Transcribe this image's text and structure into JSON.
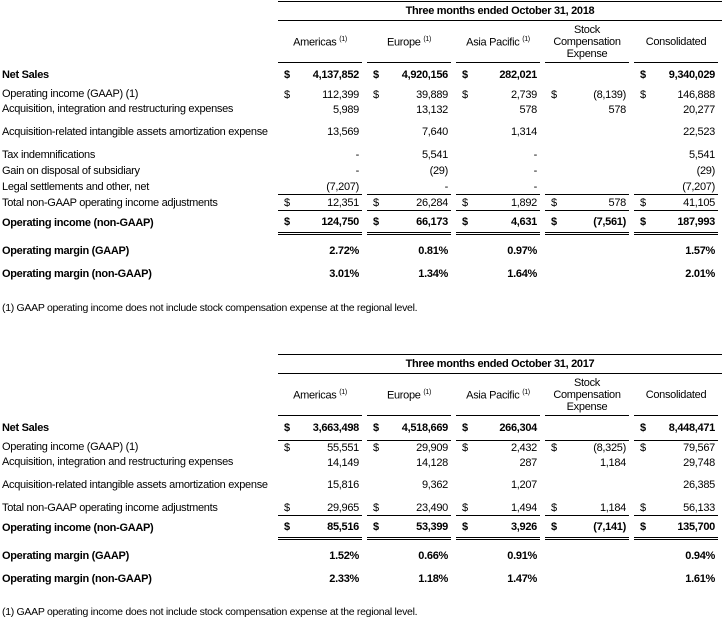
{
  "tables": [
    {
      "title": "Three months ended October 31, 2018",
      "columns": [
        "Americas",
        "Europe",
        "Asia Pacific",
        "Stock Compensation Expense",
        "Consolidated"
      ],
      "footnote_marker": "(1)",
      "rows": [
        {
          "key": "net_sales",
          "label": "Net Sales",
          "values": [
            "4,137,852",
            "4,920,156",
            "282,021",
            "",
            "9,340,029"
          ],
          "dollar": [
            true,
            true,
            true,
            false,
            true
          ]
        },
        {
          "key": "op_gaap",
          "label": "Operating income (GAAP) (1)",
          "values": [
            "112,399",
            "39,889",
            "2,739",
            "(8,139)",
            "146,888"
          ],
          "dollar": [
            true,
            true,
            true,
            true,
            true
          ]
        },
        {
          "key": "acq",
          "label": "Acquisition, integration and restructuring expenses",
          "values": [
            "5,989",
            "13,132",
            "578",
            "578",
            "20,277"
          ]
        },
        {
          "key": "amort",
          "label": "Acquisition-related intangible assets amortization expense",
          "values": [
            "13,569",
            "7,640",
            "1,314",
            "",
            "22,523"
          ]
        },
        {
          "key": "tax",
          "label": "Tax indemnifications",
          "values": [
            "-",
            "5,541",
            "-",
            "",
            "5,541"
          ]
        },
        {
          "key": "gain",
          "label": "Gain on disposal of subsidiary",
          "values": [
            "-",
            "(29)",
            "-",
            "",
            "(29)"
          ]
        },
        {
          "key": "legal",
          "label": "Legal settlements and other, net",
          "values": [
            "(7,207)",
            "-",
            "-",
            "",
            "(7,207)"
          ]
        },
        {
          "key": "total_adj",
          "label": "Total non-GAAP operating income adjustments",
          "values": [
            "12,351",
            "26,284",
            "1,892",
            "578",
            "41,105"
          ],
          "dollar": [
            true,
            true,
            true,
            true,
            true
          ]
        },
        {
          "key": "op_nongaap",
          "label": "Operating income (non-GAAP)",
          "values": [
            "124,750",
            "66,173",
            "4,631",
            "(7,561)",
            "187,993"
          ],
          "dollar": [
            true,
            true,
            true,
            true,
            true
          ]
        },
        {
          "key": "margin_gaap",
          "label": "Operating margin (GAAP)",
          "values": [
            "2.72%",
            "0.81%",
            "0.97%",
            "",
            "1.57%"
          ]
        },
        {
          "key": "margin_nongaap",
          "label": "Operating margin (non-GAAP)",
          "values": [
            "3.01%",
            "1.34%",
            "1.64%",
            "",
            "2.01%"
          ]
        }
      ],
      "footnote": "(1) GAAP operating income does not include stock compensation expense at the regional level."
    },
    {
      "title": "Three months ended October 31, 2017",
      "columns": [
        "Americas",
        "Europe",
        "Asia Pacific",
        "Stock Compensation Expense",
        "Consolidated"
      ],
      "footnote_marker": "(1)",
      "rows": [
        {
          "key": "net_sales",
          "label": "Net Sales",
          "values": [
            "3,663,498",
            "4,518,669",
            "266,304",
            "",
            "8,448,471"
          ],
          "dollar": [
            true,
            true,
            true,
            false,
            true
          ]
        },
        {
          "key": "op_gaap",
          "label": "Operating income (GAAP) (1)",
          "values": [
            "55,551",
            "29,909",
            "2,432",
            "(8,325)",
            "79,567"
          ],
          "dollar": [
            true,
            true,
            true,
            true,
            true
          ]
        },
        {
          "key": "acq",
          "label": "Acquisition, integration and restructuring expenses",
          "values": [
            "14,149",
            "14,128",
            "287",
            "1,184",
            "29,748"
          ]
        },
        {
          "key": "amort",
          "label": "Acquisition-related intangible assets amortization expense",
          "values": [
            "15,816",
            "9,362",
            "1,207",
            "",
            "26,385"
          ]
        },
        {
          "key": "total_adj",
          "label": "Total non-GAAP operating income adjustments",
          "values": [
            "29,965",
            "23,490",
            "1,494",
            "1,184",
            "56,133"
          ],
          "dollar": [
            true,
            true,
            true,
            true,
            true
          ]
        },
        {
          "key": "op_nongaap",
          "label": "Operating income (non-GAAP)",
          "values": [
            "85,516",
            "53,399",
            "3,926",
            "(7,141)",
            "135,700"
          ],
          "dollar": [
            true,
            true,
            true,
            true,
            true
          ]
        },
        {
          "key": "margin_gaap",
          "label": "Operating margin (GAAP)",
          "values": [
            "1.52%",
            "0.66%",
            "0.91%",
            "",
            "0.94%"
          ]
        },
        {
          "key": "margin_nongaap",
          "label": "Operating margin (non-GAAP)",
          "values": [
            "2.33%",
            "1.18%",
            "1.47%",
            "",
            "1.61%"
          ]
        }
      ],
      "footnote": "(1) GAAP operating income does not include stock compensation expense at the regional level."
    }
  ]
}
